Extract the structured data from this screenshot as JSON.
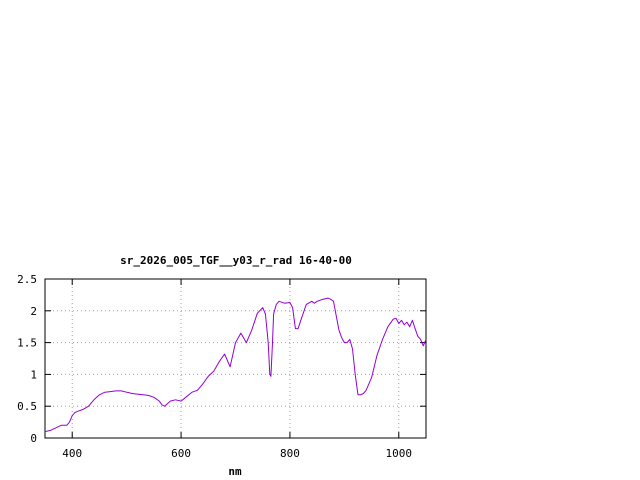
{
  "chart_data": {
    "type": "line",
    "title": "sr_2026_005_TGF__y03_r_rad 16-40-00",
    "xlabel": "nm",
    "ylabel": "",
    "xlim": [
      350,
      1050
    ],
    "ylim": [
      0,
      2.5
    ],
    "xticks": [
      400,
      600,
      800,
      1000
    ],
    "xtick_labels": [
      "400",
      "600",
      "800",
      "1000"
    ],
    "yticks": [
      0,
      0.5,
      1,
      1.5,
      2,
      2.5
    ],
    "ytick_labels": [
      "0",
      "0.5",
      "1",
      "1.5",
      "2",
      "2.5"
    ],
    "grid": true,
    "legend": "none",
    "line_color": "#9400d3",
    "series": [
      {
        "x": [
          350,
          360,
          370,
          380,
          390,
          395,
          400,
          405,
          410,
          420,
          430,
          440,
          450,
          460,
          470,
          480,
          490,
          500,
          510,
          520,
          530,
          540,
          550,
          560,
          565,
          570,
          580,
          590,
          600,
          610,
          620,
          630,
          640,
          650,
          660,
          670,
          680,
          690,
          700,
          710,
          715,
          720,
          730,
          740,
          750,
          755,
          760,
          763,
          765,
          768,
          770,
          775,
          780,
          790,
          800,
          805,
          810,
          815,
          820,
          830,
          840,
          845,
          850,
          860,
          870,
          875,
          880,
          890,
          895,
          900,
          905,
          910,
          915,
          920,
          925,
          930,
          935,
          940,
          950,
          960,
          970,
          980,
          990,
          995,
          1000,
          1005,
          1010,
          1015,
          1020,
          1025,
          1030,
          1035,
          1040,
          1045,
          1050
        ],
        "y": [
          0.1,
          0.12,
          0.16,
          0.2,
          0.2,
          0.25,
          0.35,
          0.4,
          0.42,
          0.45,
          0.5,
          0.6,
          0.68,
          0.72,
          0.73,
          0.74,
          0.74,
          0.72,
          0.7,
          0.69,
          0.68,
          0.67,
          0.64,
          0.58,
          0.52,
          0.5,
          0.58,
          0.6,
          0.58,
          0.65,
          0.72,
          0.75,
          0.85,
          0.97,
          1.05,
          1.2,
          1.32,
          1.12,
          1.5,
          1.65,
          1.57,
          1.5,
          1.7,
          1.96,
          2.05,
          1.95,
          1.5,
          1.0,
          0.97,
          1.5,
          1.95,
          2.1,
          2.15,
          2.12,
          2.13,
          2.05,
          1.72,
          1.72,
          1.85,
          2.1,
          2.15,
          2.12,
          2.15,
          2.18,
          2.2,
          2.18,
          2.15,
          1.7,
          1.58,
          1.5,
          1.5,
          1.55,
          1.4,
          1.0,
          0.68,
          0.68,
          0.7,
          0.75,
          0.95,
          1.3,
          1.55,
          1.75,
          1.87,
          1.88,
          1.8,
          1.85,
          1.78,
          1.82,
          1.75,
          1.85,
          1.72,
          1.6,
          1.55,
          1.45,
          1.55
        ]
      }
    ]
  }
}
